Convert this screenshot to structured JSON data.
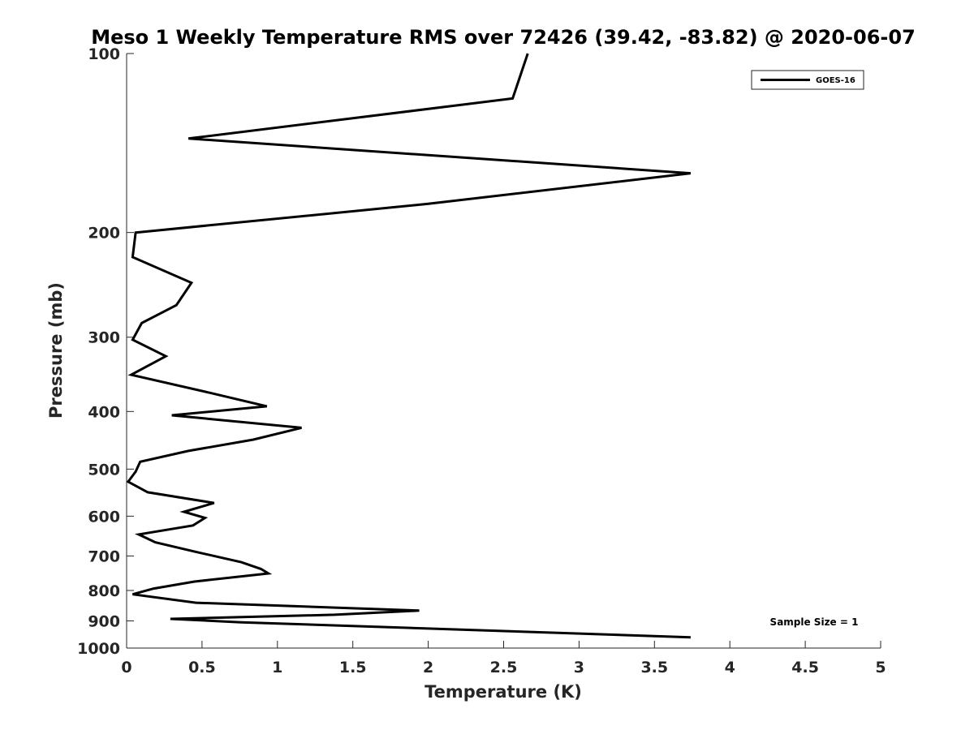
{
  "chart_data": {
    "type": "line",
    "title": "Meso 1 Weekly Temperature RMS over 72426 (39.42, -83.82) @ 2020-06-07",
    "xlabel": "Temperature (K)",
    "ylabel": "Pressure (mb)",
    "xlim": [
      0,
      5
    ],
    "ylim": [
      100,
      1000
    ],
    "y_scale": "log",
    "y_reversed": true,
    "x_ticks": [
      "0",
      "0.5",
      "1",
      "1.5",
      "2",
      "2.5",
      "3",
      "3.5",
      "4",
      "4.5",
      "5"
    ],
    "y_ticks": [
      "100",
      "200",
      "300",
      "400",
      "500",
      "600",
      "700",
      "800",
      "900",
      "1000"
    ],
    "grid": false,
    "legend_position": "top-right",
    "annotation": "Sample Size = 1",
    "series": [
      {
        "name": "GOES-16",
        "color": "#000000",
        "x": [
          2.66,
          2.56,
          0.41,
          3.74,
          2.0,
          0.06,
          0.04,
          0.43,
          0.33,
          0.1,
          0.04,
          0.26,
          0.03,
          0.55,
          0.93,
          0.3,
          1.16,
          0.84,
          0.41,
          0.09,
          0.06,
          0.01,
          0.14,
          0.58,
          0.38,
          0.52,
          0.44,
          0.08,
          0.19,
          0.46,
          0.76,
          0.89,
          0.94,
          0.45,
          0.18,
          0.04,
          0.46,
          1.94,
          1.38,
          0.29,
          0.76,
          3.74
        ],
        "y": [
          100,
          119,
          139,
          159,
          179,
          200,
          220,
          243,
          265,
          284,
          303,
          323,
          347,
          372,
          392,
          406,
          426,
          446,
          466,
          486,
          505,
          525,
          547,
          570,
          590,
          604,
          622,
          644,
          664,
          689,
          717,
          736,
          749,
          773,
          794,
          812,
          839,
          865,
          879,
          893,
          905,
          959
        ]
      }
    ]
  }
}
